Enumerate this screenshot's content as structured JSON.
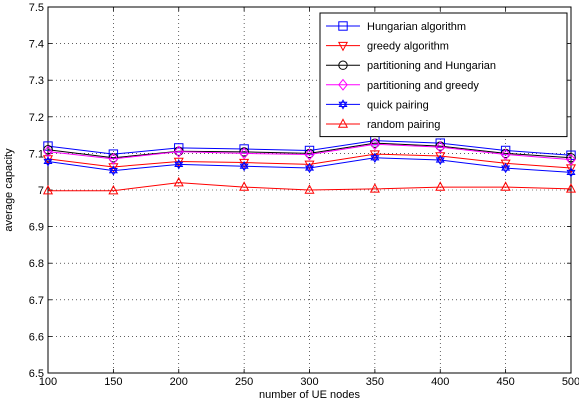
{
  "chart_data": {
    "type": "line",
    "title": "",
    "xlabel": "number of UE nodes",
    "ylabel": "average capacity",
    "x": [
      100,
      150,
      200,
      250,
      300,
      350,
      400,
      450,
      500
    ],
    "xlim": [
      100,
      500
    ],
    "ylim": [
      6.5,
      7.5
    ],
    "xticks": [
      "100",
      "150",
      "200",
      "250",
      "300",
      "350",
      "400",
      "450",
      "500"
    ],
    "yticks": [
      "6.5",
      "6.6",
      "6.7",
      "6.8",
      "6.9",
      "7",
      "7.1",
      "7.2",
      "7.3",
      "7.4",
      "7.5"
    ],
    "grid": true,
    "legend_position": "top-right",
    "series": [
      {
        "name": "Hungarian algorithm",
        "color": "#0000ff",
        "marker": "square",
        "values": [
          7.12,
          7.098,
          7.115,
          7.112,
          7.108,
          7.135,
          7.128,
          7.108,
          7.095
        ]
      },
      {
        "name": "greedy algorithm",
        "color": "#ff0000",
        "marker": "triangle-down",
        "values": [
          7.085,
          7.063,
          7.078,
          7.075,
          7.07,
          7.098,
          7.093,
          7.073,
          7.06
        ]
      },
      {
        "name": "partitioning and Hungarian",
        "color": "#000000",
        "marker": "circle",
        "values": [
          7.11,
          7.088,
          7.106,
          7.104,
          7.1,
          7.128,
          7.12,
          7.1,
          7.088
        ]
      },
      {
        "name": "partitioning and greedy",
        "color": "#ff00ff",
        "marker": "diamond",
        "values": [
          7.105,
          7.085,
          7.105,
          7.1,
          7.097,
          7.125,
          7.117,
          7.097,
          7.083
        ]
      },
      {
        "name": "quick pairing",
        "color": "#0000ff",
        "marker": "hexagram",
        "values": [
          7.078,
          7.053,
          7.07,
          7.065,
          7.06,
          7.088,
          7.082,
          7.06,
          7.048
        ]
      },
      {
        "name": "random pairing",
        "color": "#ff0000",
        "marker": "triangle-up",
        "values": [
          6.998,
          6.998,
          7.02,
          7.008,
          7.0,
          7.003,
          7.008,
          7.008,
          7.003
        ]
      }
    ]
  }
}
